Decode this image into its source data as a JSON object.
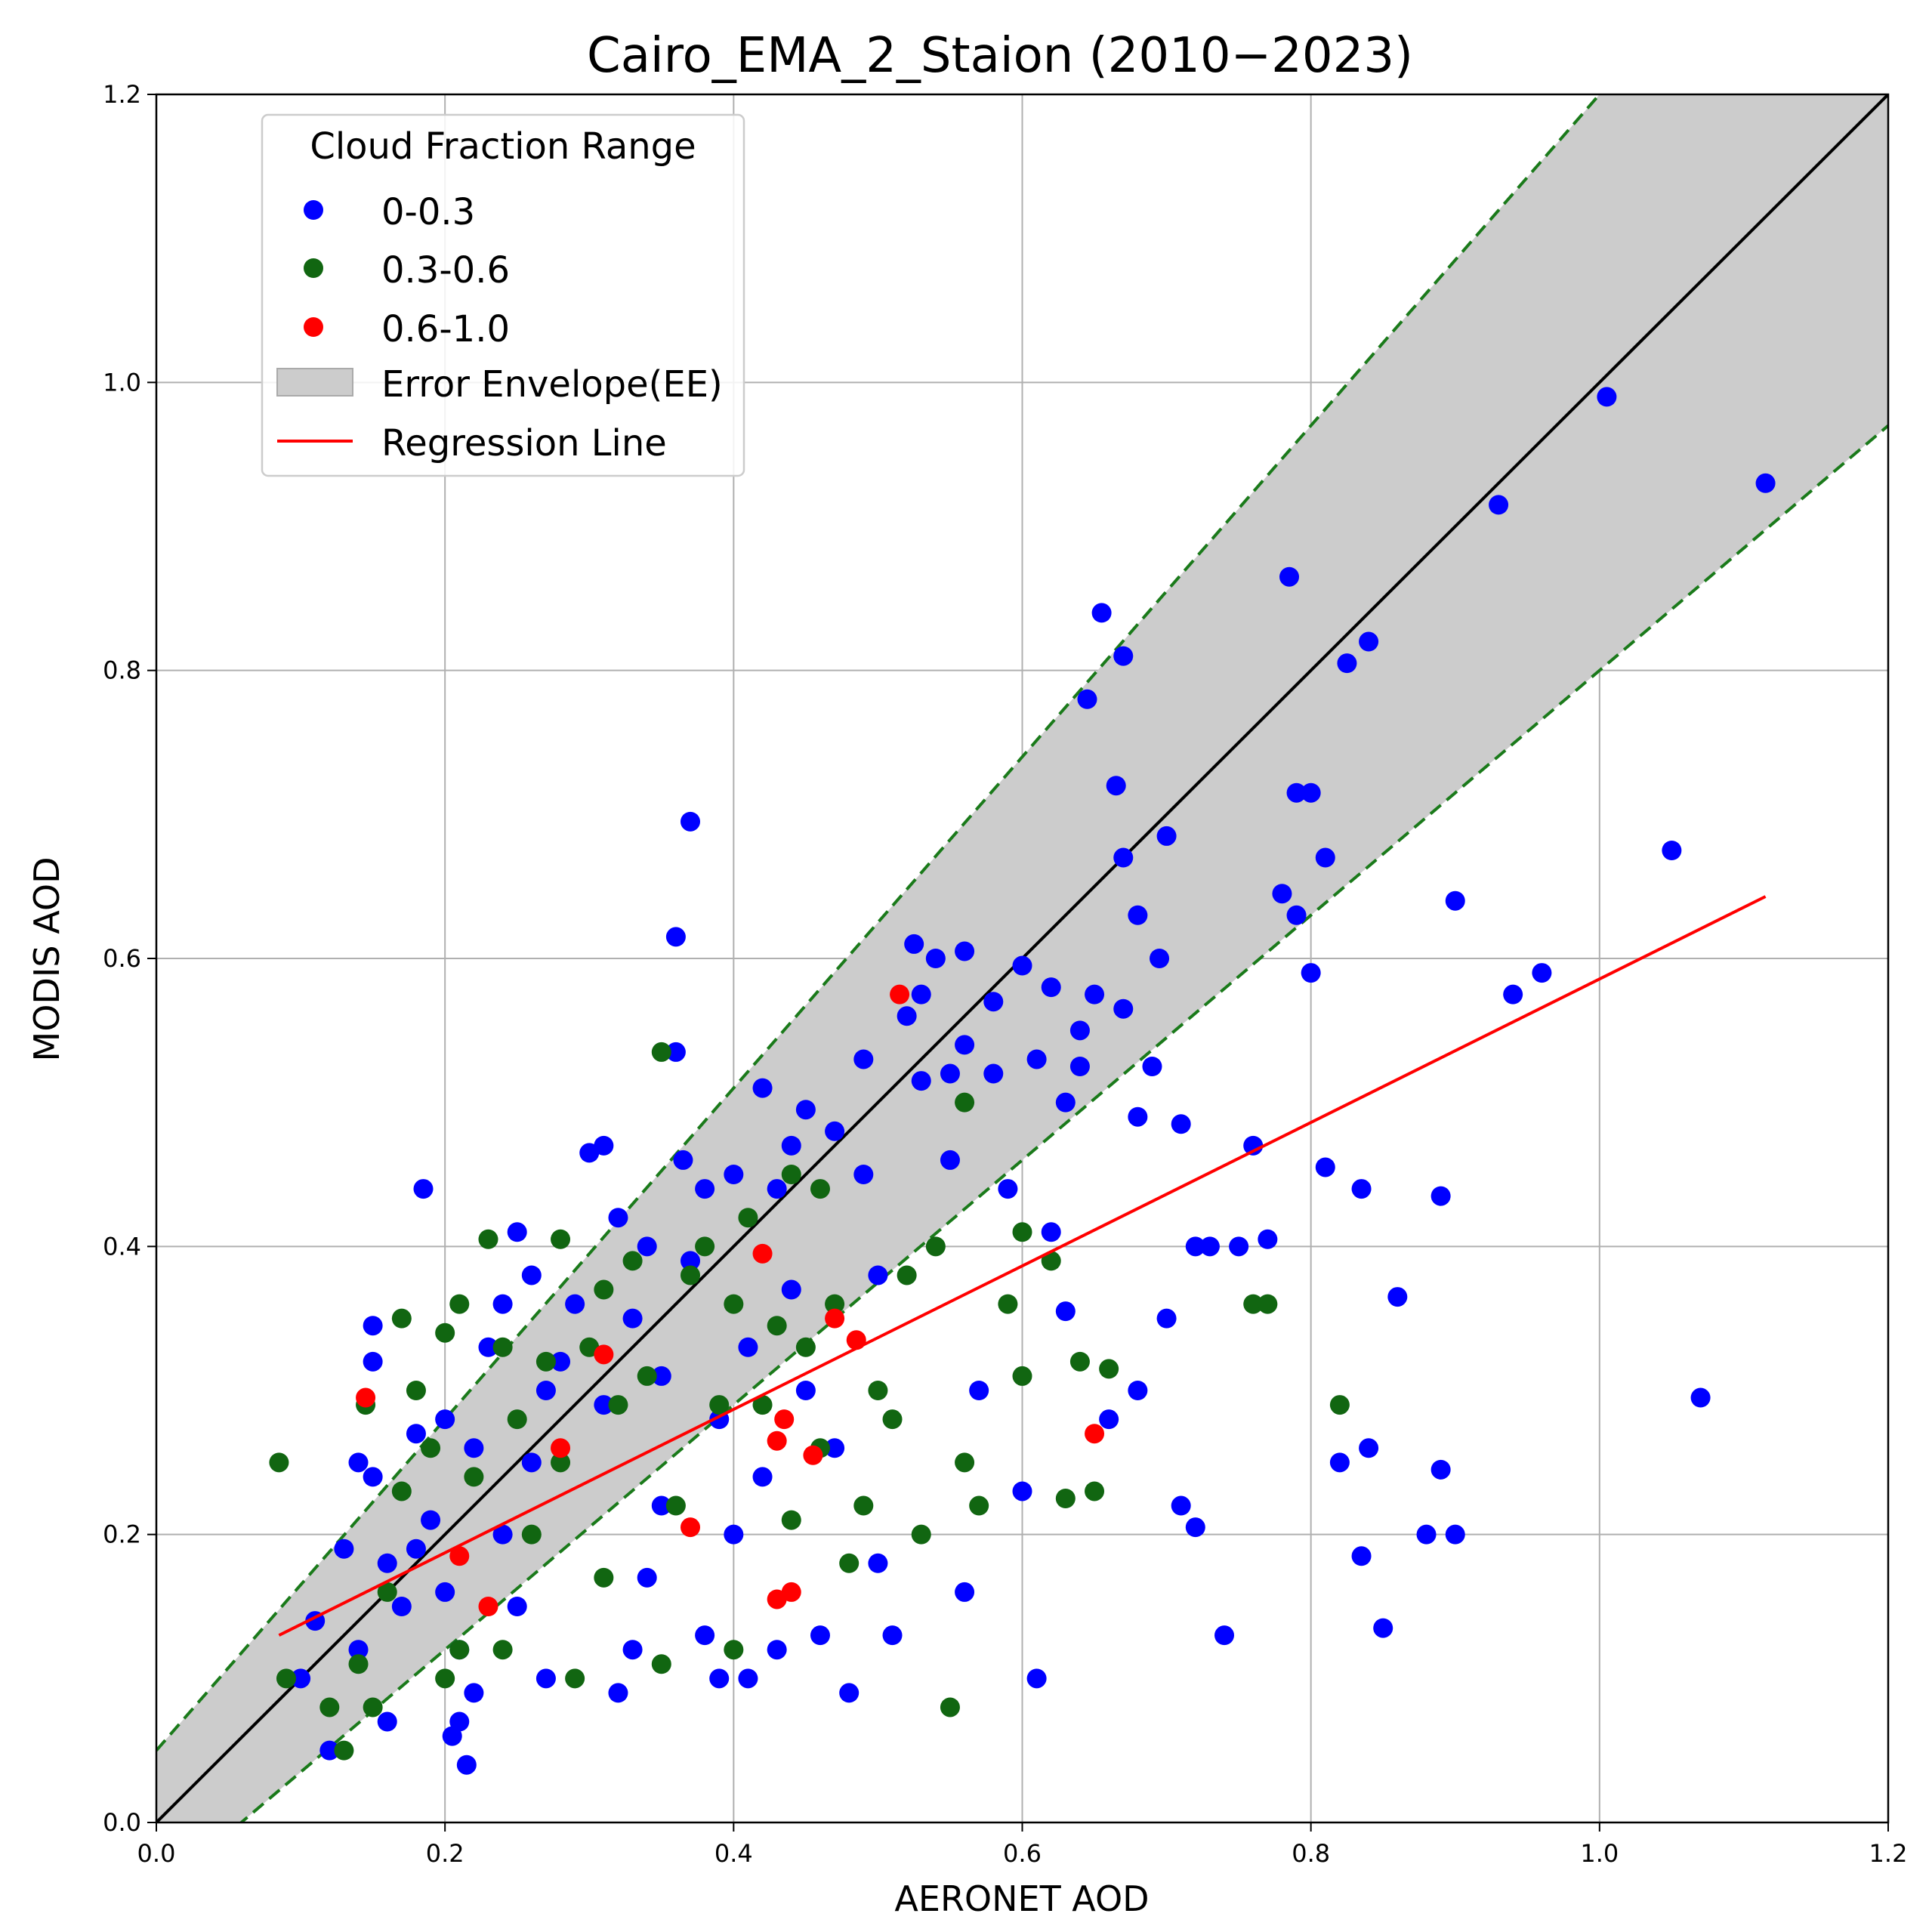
{
  "chart_data": {
    "type": "scatter",
    "title": "Cairo_EMA_2_Staion (2010−2023)",
    "xlabel": "AERONET AOD",
    "ylabel": "MODIS AOD",
    "xlim": [
      0,
      1.2
    ],
    "ylim": [
      0,
      1.2
    ],
    "xticks": [
      "0.0",
      "0.2",
      "0.4",
      "0.6",
      "0.8",
      "1.0",
      "1.2"
    ],
    "yticks": [
      "0.0",
      "0.2",
      "0.4",
      "0.6",
      "0.8",
      "1.0",
      "1.2"
    ],
    "grid": true,
    "legend": {
      "title": "Cloud Fraction Range",
      "position": "top-left",
      "entries": [
        "0-0.3",
        "0.3-0.6",
        "0.6-1.0",
        "Error Envelope(EE)",
        "Regression Line"
      ]
    },
    "error_envelope": {
      "label": "Error Envelope(EE)",
      "offset": 0.05,
      "relative": 0.15,
      "fill": "#cccccc",
      "edge_color": "#1a7a1a"
    },
    "one_to_one_line": {
      "from": [
        0,
        0
      ],
      "to": [
        1.2,
        1.2
      ],
      "color": "#000000"
    },
    "regression_line": {
      "label": "Regression Line",
      "from": [
        0.085,
        0.13
      ],
      "to": [
        1.115,
        0.643
      ],
      "color": "#ff0000"
    },
    "series": [
      {
        "name": "0-0.3",
        "color": "#0000ff",
        "points": [
          [
            0.1,
            0.1
          ],
          [
            0.11,
            0.14
          ],
          [
            0.12,
            0.05
          ],
          [
            0.13,
            0.19
          ],
          [
            0.14,
            0.25
          ],
          [
            0.14,
            0.12
          ],
          [
            0.15,
            0.345
          ],
          [
            0.15,
            0.32
          ],
          [
            0.15,
            0.24
          ],
          [
            0.16,
            0.18
          ],
          [
            0.16,
            0.07
          ],
          [
            0.17,
            0.15
          ],
          [
            0.18,
            0.19
          ],
          [
            0.18,
            0.27
          ],
          [
            0.185,
            0.44
          ],
          [
            0.19,
            0.21
          ],
          [
            0.2,
            0.16
          ],
          [
            0.2,
            0.28
          ],
          [
            0.205,
            0.06
          ],
          [
            0.21,
            0.07
          ],
          [
            0.21,
            0.12
          ],
          [
            0.215,
            0.04
          ],
          [
            0.22,
            0.26
          ],
          [
            0.22,
            0.09
          ],
          [
            0.23,
            0.33
          ],
          [
            0.24,
            0.36
          ],
          [
            0.24,
            0.2
          ],
          [
            0.25,
            0.41
          ],
          [
            0.25,
            0.15
          ],
          [
            0.26,
            0.38
          ],
          [
            0.26,
            0.25
          ],
          [
            0.27,
            0.3
          ],
          [
            0.27,
            0.1
          ],
          [
            0.28,
            0.32
          ],
          [
            0.29,
            0.36
          ],
          [
            0.3,
            0.465
          ],
          [
            0.31,
            0.47
          ],
          [
            0.31,
            0.29
          ],
          [
            0.32,
            0.42
          ],
          [
            0.32,
            0.09
          ],
          [
            0.33,
            0.35
          ],
          [
            0.33,
            0.12
          ],
          [
            0.34,
            0.4
          ],
          [
            0.34,
            0.17
          ],
          [
            0.35,
            0.31
          ],
          [
            0.35,
            0.22
          ],
          [
            0.36,
            0.615
          ],
          [
            0.36,
            0.535
          ],
          [
            0.365,
            0.46
          ],
          [
            0.37,
            0.695
          ],
          [
            0.37,
            0.39
          ],
          [
            0.38,
            0.44
          ],
          [
            0.38,
            0.13
          ],
          [
            0.39,
            0.28
          ],
          [
            0.39,
            0.1
          ],
          [
            0.4,
            0.45
          ],
          [
            0.4,
            0.2
          ],
          [
            0.41,
            0.33
          ],
          [
            0.41,
            0.1
          ],
          [
            0.42,
            0.51
          ],
          [
            0.42,
            0.24
          ],
          [
            0.43,
            0.44
          ],
          [
            0.43,
            0.12
          ],
          [
            0.44,
            0.47
          ],
          [
            0.44,
            0.37
          ],
          [
            0.45,
            0.495
          ],
          [
            0.45,
            0.3
          ],
          [
            0.46,
            0.13
          ],
          [
            0.47,
            0.48
          ],
          [
            0.47,
            0.26
          ],
          [
            0.48,
            0.09
          ],
          [
            0.49,
            0.53
          ],
          [
            0.49,
            0.45
          ],
          [
            0.5,
            0.38
          ],
          [
            0.5,
            0.18
          ],
          [
            0.51,
            0.13
          ],
          [
            0.52,
            0.56
          ],
          [
            0.525,
            0.61
          ],
          [
            0.53,
            0.575
          ],
          [
            0.53,
            0.515
          ],
          [
            0.54,
            0.6
          ],
          [
            0.55,
            0.52
          ],
          [
            0.55,
            0.46
          ],
          [
            0.56,
            0.605
          ],
          [
            0.56,
            0.54
          ],
          [
            0.56,
            0.16
          ],
          [
            0.57,
            0.3
          ],
          [
            0.58,
            0.52
          ],
          [
            0.58,
            0.57
          ],
          [
            0.59,
            0.44
          ],
          [
            0.6,
            0.595
          ],
          [
            0.6,
            0.23
          ],
          [
            0.61,
            0.53
          ],
          [
            0.61,
            0.1
          ],
          [
            0.62,
            0.58
          ],
          [
            0.62,
            0.41
          ],
          [
            0.63,
            0.5
          ],
          [
            0.63,
            0.355
          ],
          [
            0.64,
            0.55
          ],
          [
            0.64,
            0.525
          ],
          [
            0.645,
            0.78
          ],
          [
            0.65,
            0.575
          ],
          [
            0.655,
            0.84
          ],
          [
            0.66,
            0.28
          ],
          [
            0.665,
            0.72
          ],
          [
            0.67,
            0.81
          ],
          [
            0.67,
            0.67
          ],
          [
            0.67,
            0.565
          ],
          [
            0.68,
            0.63
          ],
          [
            0.68,
            0.49
          ],
          [
            0.68,
            0.3
          ],
          [
            0.69,
            0.525
          ],
          [
            0.695,
            0.6
          ],
          [
            0.7,
            0.685
          ],
          [
            0.7,
            0.35
          ],
          [
            0.71,
            0.485
          ],
          [
            0.71,
            0.22
          ],
          [
            0.72,
            0.4
          ],
          [
            0.72,
            0.205
          ],
          [
            0.73,
            0.4
          ],
          [
            0.74,
            0.13
          ],
          [
            0.75,
            0.4
          ],
          [
            0.76,
            0.47
          ],
          [
            0.77,
            0.405
          ],
          [
            0.78,
            0.645
          ],
          [
            0.785,
            0.865
          ],
          [
            0.79,
            0.715
          ],
          [
            0.79,
            0.63
          ],
          [
            0.8,
            0.715
          ],
          [
            0.8,
            0.59
          ],
          [
            0.81,
            0.67
          ],
          [
            0.81,
            0.455
          ],
          [
            0.82,
            0.25
          ],
          [
            0.825,
            0.805
          ],
          [
            0.835,
            0.44
          ],
          [
            0.835,
            0.185
          ],
          [
            0.84,
            0.82
          ],
          [
            0.84,
            0.26
          ],
          [
            0.85,
            0.135
          ],
          [
            0.86,
            0.365
          ],
          [
            0.88,
            0.2
          ],
          [
            0.89,
            0.435
          ],
          [
            0.89,
            0.245
          ],
          [
            0.9,
            0.2
          ],
          [
            0.9,
            0.64
          ],
          [
            0.93,
            0.915
          ],
          [
            0.94,
            0.575
          ],
          [
            0.96,
            0.59
          ],
          [
            1.005,
            0.99
          ],
          [
            1.05,
            0.675
          ],
          [
            1.07,
            0.295
          ],
          [
            1.115,
            0.93
          ]
        ]
      },
      {
        "name": "0.3-0.6",
        "color": "#116611",
        "points": [
          [
            0.085,
            0.25
          ],
          [
            0.09,
            0.1
          ],
          [
            0.12,
            0.08
          ],
          [
            0.13,
            0.05
          ],
          [
            0.14,
            0.11
          ],
          [
            0.145,
            0.29
          ],
          [
            0.15,
            0.08
          ],
          [
            0.16,
            0.16
          ],
          [
            0.17,
            0.35
          ],
          [
            0.17,
            0.23
          ],
          [
            0.18,
            0.3
          ],
          [
            0.19,
            0.26
          ],
          [
            0.2,
            0.34
          ],
          [
            0.2,
            0.1
          ],
          [
            0.21,
            0.36
          ],
          [
            0.21,
            0.12
          ],
          [
            0.22,
            0.24
          ],
          [
            0.23,
            0.405
          ],
          [
            0.24,
            0.33
          ],
          [
            0.24,
            0.12
          ],
          [
            0.25,
            0.28
          ],
          [
            0.26,
            0.2
          ],
          [
            0.27,
            0.32
          ],
          [
            0.28,
            0.405
          ],
          [
            0.28,
            0.25
          ],
          [
            0.29,
            0.1
          ],
          [
            0.3,
            0.33
          ],
          [
            0.31,
            0.37
          ],
          [
            0.31,
            0.17
          ],
          [
            0.32,
            0.29
          ],
          [
            0.33,
            0.39
          ],
          [
            0.34,
            0.31
          ],
          [
            0.35,
            0.535
          ],
          [
            0.35,
            0.11
          ],
          [
            0.36,
            0.22
          ],
          [
            0.37,
            0.38
          ],
          [
            0.38,
            0.4
          ],
          [
            0.39,
            0.29
          ],
          [
            0.4,
            0.36
          ],
          [
            0.4,
            0.12
          ],
          [
            0.41,
            0.42
          ],
          [
            0.42,
            0.29
          ],
          [
            0.43,
            0.345
          ],
          [
            0.44,
            0.45
          ],
          [
            0.44,
            0.21
          ],
          [
            0.45,
            0.33
          ],
          [
            0.46,
            0.44
          ],
          [
            0.46,
            0.26
          ],
          [
            0.47,
            0.36
          ],
          [
            0.48,
            0.18
          ],
          [
            0.49,
            0.22
          ],
          [
            0.5,
            0.3
          ],
          [
            0.51,
            0.28
          ],
          [
            0.52,
            0.38
          ],
          [
            0.53,
            0.2
          ],
          [
            0.54,
            0.4
          ],
          [
            0.55,
            0.08
          ],
          [
            0.56,
            0.5
          ],
          [
            0.56,
            0.25
          ],
          [
            0.57,
            0.22
          ],
          [
            0.59,
            0.36
          ],
          [
            0.6,
            0.41
          ],
          [
            0.6,
            0.31
          ],
          [
            0.62,
            0.39
          ],
          [
            0.63,
            0.225
          ],
          [
            0.64,
            0.32
          ],
          [
            0.65,
            0.23
          ],
          [
            0.66,
            0.315
          ],
          [
            0.76,
            0.36
          ],
          [
            0.77,
            0.36
          ],
          [
            0.82,
            0.29
          ]
        ]
      },
      {
        "name": "0.6-1.0",
        "color": "#ff0000",
        "points": [
          [
            0.145,
            0.295
          ],
          [
            0.21,
            0.185
          ],
          [
            0.23,
            0.15
          ],
          [
            0.28,
            0.26
          ],
          [
            0.31,
            0.325
          ],
          [
            0.37,
            0.205
          ],
          [
            0.42,
            0.395
          ],
          [
            0.43,
            0.265
          ],
          [
            0.43,
            0.155
          ],
          [
            0.435,
            0.28
          ],
          [
            0.44,
            0.16
          ],
          [
            0.455,
            0.255
          ],
          [
            0.47,
            0.35
          ],
          [
            0.485,
            0.335
          ],
          [
            0.515,
            0.575
          ],
          [
            0.65,
            0.27
          ]
        ]
      }
    ]
  }
}
